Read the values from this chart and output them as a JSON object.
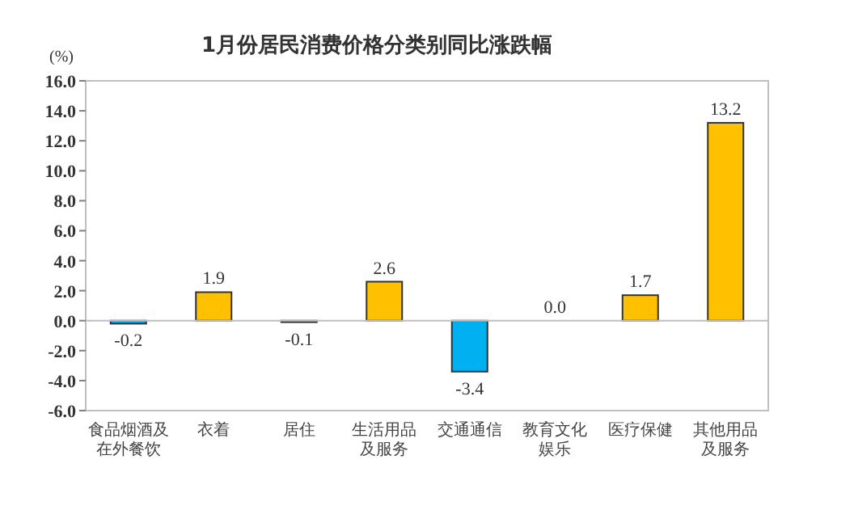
{
  "chart_data": {
    "type": "bar",
    "title": "1月份居民消费价格分类别同比涨跌幅",
    "ylabel": "(%)",
    "categories": [
      "食品烟酒及在外餐饮",
      "衣着",
      "居住",
      "生活用品及服务",
      "交通通信",
      "教育文化娱乐",
      "医疗保健",
      "其他用品及服务"
    ],
    "values": [
      -0.2,
      1.9,
      -0.1,
      2.6,
      -3.4,
      0.0,
      1.7,
      13.2
    ],
    "colors": [
      "#00b0f0",
      "#ffc000",
      "#00b0f0",
      "#ffc000",
      "#00b0f0",
      "#ffc000",
      "#ffc000",
      "#ffc000"
    ],
    "value_labels": [
      "-0.2",
      "1.9",
      "-0.1",
      "2.6",
      "-3.4",
      "0.0",
      "1.7",
      "13.2"
    ],
    "ylim": [
      -6,
      16
    ],
    "yticks": [
      {
        "value": -6,
        "label": "-6.0"
      },
      {
        "value": -4,
        "label": "-4.0"
      },
      {
        "value": -2,
        "label": "-2.0"
      },
      {
        "value": 0,
        "label": "0.0"
      },
      {
        "value": 2,
        "label": "2.0"
      },
      {
        "value": 4,
        "label": "4.0"
      },
      {
        "value": 6,
        "label": "6.0"
      },
      {
        "value": 8,
        "label": "8.0"
      },
      {
        "value": 10,
        "label": "10.0"
      },
      {
        "value": 12,
        "label": "12.0"
      },
      {
        "value": 14,
        "label": "14.0"
      },
      {
        "value": 16,
        "label": "16.0"
      }
    ]
  }
}
